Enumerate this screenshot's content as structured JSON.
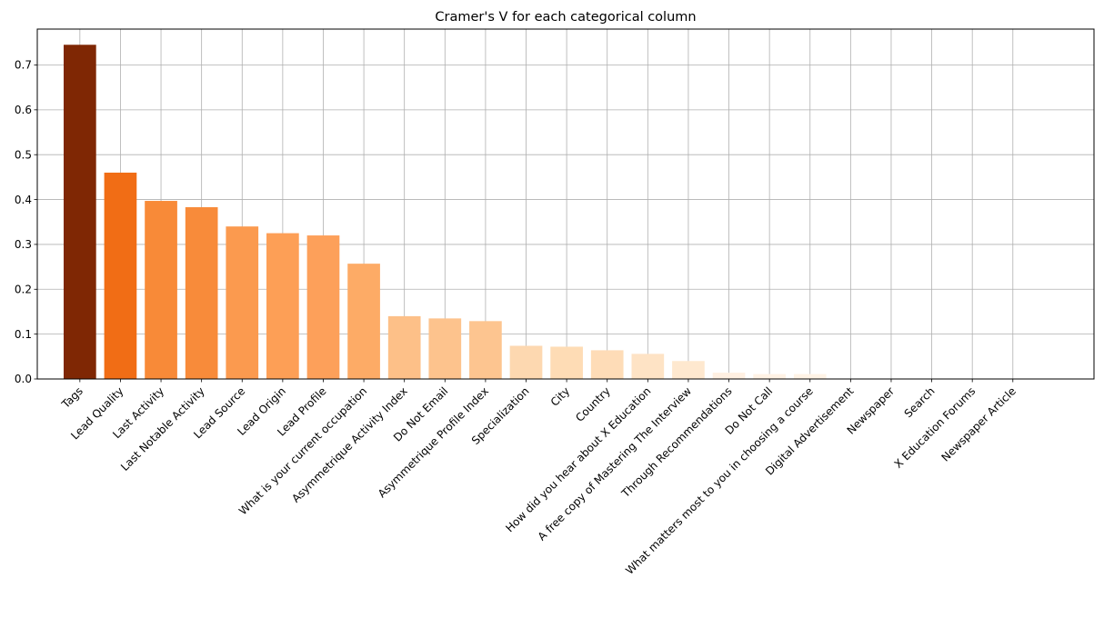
{
  "chart_data": {
    "type": "bar",
    "title": "Cramer's V for each categorical column",
    "xlabel": "",
    "ylabel": "",
    "ylim": [
      0,
      0.78
    ],
    "yticks": [
      "0.0",
      "0.1",
      "0.2",
      "0.3",
      "0.4",
      "0.5",
      "0.6",
      "0.7"
    ],
    "grid": true,
    "categories": [
      "Tags",
      "Lead Quality",
      "Last Activity",
      "Last Notable Activity",
      "Lead Source",
      "Lead Origin",
      "Lead Profile",
      "What is your current occupation",
      "Asymmetrique Activity Index",
      "Do Not Email",
      "Asymmetrique Profile Index",
      "Specialization",
      "City",
      "Country",
      "How did you hear about X Education",
      "A free copy of Mastering The Interview",
      "Through Recommendations",
      "Do Not Call",
      "What matters most to you in choosing a course",
      "Digital Advertisement",
      "Newspaper",
      "Search",
      "X Education Forums",
      "Newspaper Article"
    ],
    "values": [
      0.745,
      0.46,
      0.397,
      0.383,
      0.34,
      0.325,
      0.32,
      0.257,
      0.14,
      0.135,
      0.129,
      0.074,
      0.072,
      0.064,
      0.056,
      0.04,
      0.014,
      0.011,
      0.011,
      0.0,
      0.0,
      0.0,
      0.0,
      0.0
    ],
    "colors": [
      "#7f2704",
      "#f16d15",
      "#f88a38",
      "#f88b3a",
      "#fb9a4f",
      "#fd9f56",
      "#fda05a",
      "#fdab66",
      "#fdc088",
      "#fdc38d",
      "#fdc590",
      "#fdd8b0",
      "#fedcb5",
      "#fedcb7",
      "#fee3c5",
      "#fee8cf",
      "#fff0e2",
      "#fff2e5",
      "#fff3e6",
      "#fff5eb",
      "#fff5eb",
      "#fff5eb",
      "#fff5eb",
      "#fff5eb"
    ]
  }
}
